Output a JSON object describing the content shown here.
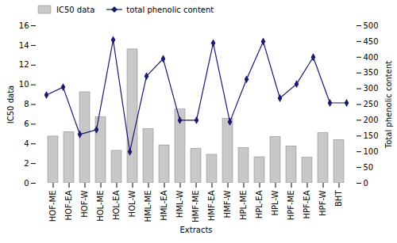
{
  "chart_data": {
    "type": "bar",
    "xlabel": "Extracts",
    "ylabel": "IC50 data",
    "y2label": "Total phenolic content",
    "categories": [
      "HOF-ME",
      "HOF-EA",
      "HOF-W",
      "HOL-ME",
      "HOL-EA",
      "HOL-W",
      "HML-ME",
      "HML-EA",
      "HML-W",
      "HMF-ME",
      "HMF-EA",
      "HMF-W",
      "HPL-ME",
      "HPL-EA",
      "HPL-W",
      "HPF-ME",
      "HPF-EA",
      "HPF-W",
      "BHT"
    ],
    "series": [
      {
        "name": "IC50 data",
        "type": "bar",
        "color": "#c8c8c8",
        "values": [
          4.75,
          5.2,
          9.25,
          6.7,
          3.3,
          13.6,
          5.5,
          3.85,
          7.5,
          3.5,
          2.9,
          6.55,
          3.6,
          2.65,
          4.7,
          3.75,
          2.6,
          5.1,
          4.4
        ]
      },
      {
        "name": "total phenolic content",
        "type": "line",
        "color": "#1a1a6e",
        "marker": "diamond",
        "axis": "y2",
        "values": [
          280,
          305,
          155,
          170,
          455,
          100,
          340,
          395,
          200,
          200,
          445,
          195,
          330,
          450,
          270,
          315,
          400,
          255,
          255
        ]
      }
    ],
    "ylim": [
      0,
      16
    ],
    "yticks": [
      0,
      2,
      4,
      6,
      8,
      10,
      12,
      14,
      16
    ],
    "y2lim": [
      0,
      500
    ],
    "y2ticks": [
      0,
      50,
      100,
      150,
      200,
      250,
      300,
      350,
      400,
      450,
      500
    ],
    "legend": "upper left"
  }
}
